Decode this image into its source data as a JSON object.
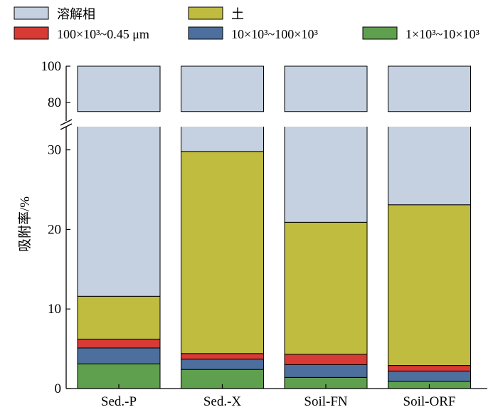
{
  "chart_data": {
    "type": "bar",
    "stacked": true,
    "broken_axis": true,
    "categories": [
      "Sed.-P",
      "Sed.-X",
      "Soil-FN",
      "Soil-ORF"
    ],
    "ylabel": "吸附率/%",
    "ylim": [
      0,
      100
    ],
    "lower_axis_range": [
      0,
      33.5
    ],
    "upper_axis_range": [
      75,
      100
    ],
    "lower_ticks": [
      0,
      10,
      20,
      30
    ],
    "upper_ticks": [
      80,
      100
    ],
    "legend_position": "top",
    "series": [
      {
        "name": "1×10³~10×10³",
        "color": "#5fa04e",
        "values": [
          3.1,
          2.4,
          1.4,
          0.9
        ]
      },
      {
        "name": "10×10³~100×10³",
        "color": "#4d6f9e",
        "values": [
          2.0,
          1.3,
          1.6,
          1.3
        ]
      },
      {
        "name": "100×10³~0.45 μm",
        "color": "#d83a35",
        "values": [
          1.1,
          0.7,
          1.3,
          0.7
        ]
      },
      {
        "name": "土",
        "color": "#c0bc40",
        "values": [
          5.4,
          25.4,
          16.6,
          20.2
        ]
      },
      {
        "name": "溶解相",
        "color": "#c5d0e0",
        "values": [
          88.4,
          70.2,
          79.1,
          76.9
        ]
      }
    ],
    "legend_order": [
      "溶解相",
      "土",
      "100×10³~0.45 μm",
      "10×10³~100×10³",
      "1×10³~10×10³"
    ]
  }
}
